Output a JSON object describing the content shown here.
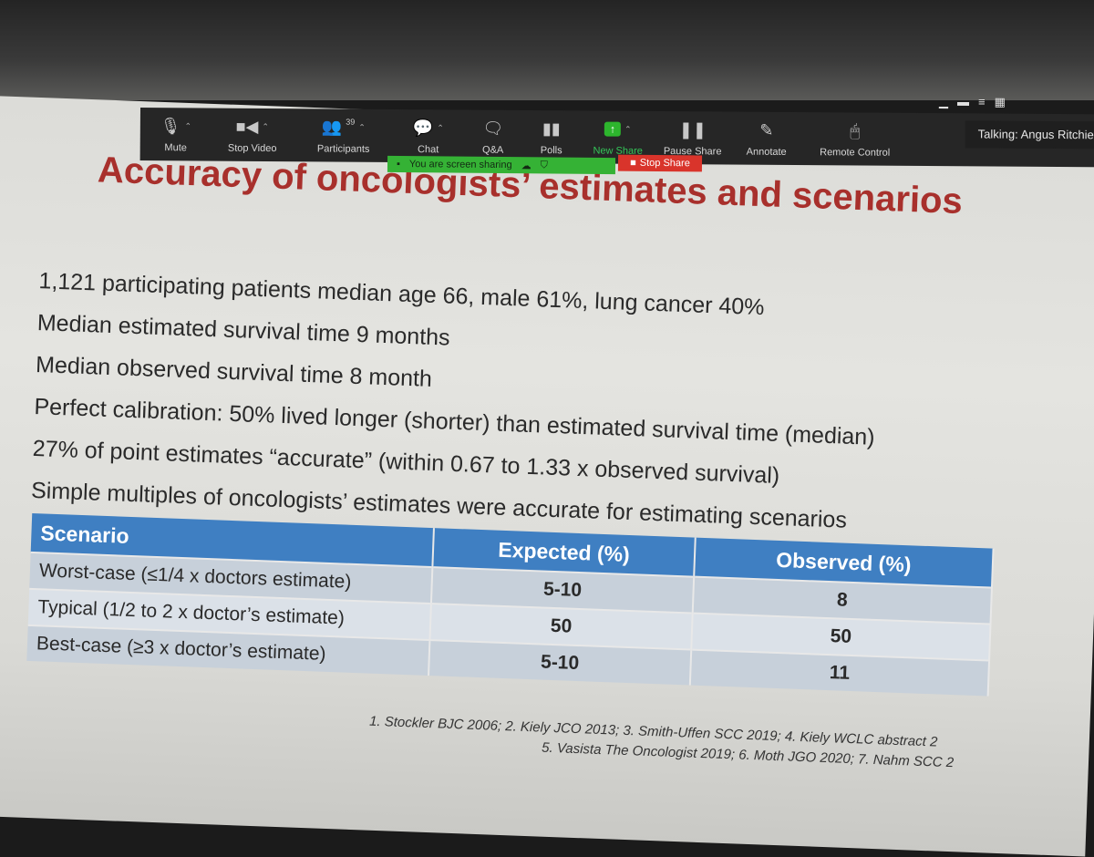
{
  "toolbar": {
    "items": [
      {
        "label": "Mute",
        "icon": "microphone-icon"
      },
      {
        "label": "Stop Video",
        "icon": "video-camera-icon"
      },
      {
        "label": "Participants",
        "icon": "participants-icon",
        "count": "39"
      },
      {
        "label": "Chat",
        "icon": "chat-bubble-icon"
      },
      {
        "label": "Q&A",
        "icon": "qa-icon"
      },
      {
        "label": "Polls",
        "icon": "polls-icon"
      },
      {
        "label": "New Share",
        "icon": "share-arrow-icon"
      },
      {
        "label": "Pause Share",
        "icon": "pause-icon"
      },
      {
        "label": "Annotate",
        "icon": "pencil-icon"
      },
      {
        "label": "Remote Control",
        "icon": "mouse-icon"
      }
    ],
    "talking": "Talking: Angus Ritchie"
  },
  "share_bar": {
    "status": "You are screen sharing",
    "stop_label": "Stop Share"
  },
  "slide": {
    "title": "Accuracy of oncologists’ estimates and scenarios",
    "bullets": [
      "1,121 participating patients median age 66, male 61%, lung cancer 40%",
      "Median estimated survival time 9 months",
      "Median observed survival time 8 month",
      "Perfect calibration: 50% lived longer (shorter) than estimated survival time (median)",
      "27% of point estimates “accurate” (within 0.67 to 1.33 x observed survival)",
      "Simple multiples of oncologists’ estimates were accurate for estimating scenarios"
    ],
    "table": {
      "headers": [
        "Scenario",
        "Expected (%)",
        "Observed (%)"
      ],
      "rows": [
        [
          "Worst-case (≤1/4 x doctors estimate)",
          "5-10",
          "8"
        ],
        [
          "Typical (1/2 to 2 x doctor’s estimate)",
          "50",
          "50"
        ],
        [
          "Best-case (≥3 x doctor’s estimate)",
          "5-10",
          "11"
        ]
      ]
    },
    "references": {
      "line1": "1.     Stockler BJC 2006; 2. Kiely JCO 2013; 3. Smith-Uffen SCC 2019; 4. Kiely WCLC abstract 2",
      "line2": "5. Vasista The Oncologist 2019; 6. Moth JGO 2020; 7. Nahm SCC 2"
    }
  }
}
